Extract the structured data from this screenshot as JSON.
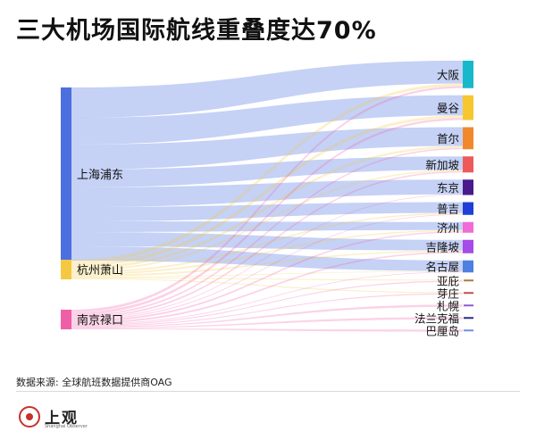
{
  "title": "三大机场国际航线重叠度达70%",
  "source": "数据来源: 全球航班数据提供商OAG",
  "logo": {
    "name": "上观",
    "sub": "Shanghai Observer"
  },
  "chart_data": {
    "type": "sankey",
    "title": "三大机场国际航线重叠度达70%",
    "sources": [
      {
        "name": "上海浦东",
        "color": "#4c6fe0"
      },
      {
        "name": "杭州萧山",
        "color": "#f5c842"
      },
      {
        "name": "南京禄口",
        "color": "#ef5fa8"
      }
    ],
    "targets": [
      {
        "name": "大阪",
        "color": "#16b8c9"
      },
      {
        "name": "曼谷",
        "color": "#f7c730"
      },
      {
        "name": "首尔",
        "color": "#f2882c"
      },
      {
        "name": "新加坡",
        "color": "#ee5a5a"
      },
      {
        "name": "东京",
        "color": "#4a1a8c"
      },
      {
        "name": "普吉",
        "color": "#1f3fd6"
      },
      {
        "name": "济州",
        "color": "#f06bd6"
      },
      {
        "name": "吉隆坡",
        "color": "#a64ae8"
      },
      {
        "name": "名古屋",
        "color": "#4f7fe0"
      },
      {
        "name": "亚庇",
        "color": "#b5763a"
      },
      {
        "name": "芽庄",
        "color": "#c44e4e"
      },
      {
        "name": "札幌",
        "color": "#8c5bd6"
      },
      {
        "name": "法兰克福",
        "color": "#2b2b8c"
      },
      {
        "name": "巴厘岛",
        "color": "#6f8fe0"
      }
    ],
    "links": [
      {
        "source": "上海浦东",
        "target": "大阪",
        "value": 17
      },
      {
        "source": "上海浦东",
        "target": "曼谷",
        "value": 15
      },
      {
        "source": "上海浦东",
        "target": "首尔",
        "value": 14
      },
      {
        "source": "上海浦东",
        "target": "新加坡",
        "value": 10
      },
      {
        "source": "上海浦东",
        "target": "东京",
        "value": 11
      },
      {
        "source": "上海浦东",
        "target": "普吉",
        "value": 8
      },
      {
        "source": "上海浦东",
        "target": "济州",
        "value": 6
      },
      {
        "source": "上海浦东",
        "target": "吉隆坡",
        "value": 8
      },
      {
        "source": "上海浦东",
        "target": "名古屋",
        "value": 8
      },
      {
        "source": "杭州萧山",
        "target": "大阪",
        "value": 2
      },
      {
        "source": "杭州萧山",
        "target": "曼谷",
        "value": 2
      },
      {
        "source": "杭州萧山",
        "target": "首尔",
        "value": 1.5
      },
      {
        "source": "杭州萧山",
        "target": "新加坡",
        "value": 1
      },
      {
        "source": "杭州萧山",
        "target": "普吉",
        "value": 1
      },
      {
        "source": "杭州萧山",
        "target": "济州",
        "value": 1
      },
      {
        "source": "杭州萧山",
        "target": "吉隆坡",
        "value": 1
      },
      {
        "source": "杭州萧山",
        "target": "名古屋",
        "value": 0.5
      },
      {
        "source": "杭州萧山",
        "target": "亚庇",
        "value": 0.5
      },
      {
        "source": "杭州萧山",
        "target": "芽庄",
        "value": 0.5
      },
      {
        "source": "南京禄口",
        "target": "大阪",
        "value": 1.5
      },
      {
        "source": "南京禄口",
        "target": "曼谷",
        "value": 1.5
      },
      {
        "source": "南京禄口",
        "target": "首尔",
        "value": 1
      },
      {
        "source": "南京禄口",
        "target": "新加坡",
        "value": 1
      },
      {
        "source": "南京禄口",
        "target": "东京",
        "value": 0.5
      },
      {
        "source": "南京禄口",
        "target": "普吉",
        "value": 0.5
      },
      {
        "source": "南京禄口",
        "target": "济州",
        "value": 1
      },
      {
        "source": "南京禄口",
        "target": "吉隆坡",
        "value": 1
      },
      {
        "source": "南京禄口",
        "target": "名古屋",
        "value": 0.5
      },
      {
        "source": "南京禄口",
        "target": "亚庇",
        "value": 0.5
      },
      {
        "source": "南京禄口",
        "target": "芽庄",
        "value": 0.5
      },
      {
        "source": "南京禄口",
        "target": "札幌",
        "value": 0.5
      },
      {
        "source": "南京禄口",
        "target": "法兰克福",
        "value": 0.5
      },
      {
        "source": "南京禄口",
        "target": "巴厘岛",
        "value": 0.5
      }
    ]
  }
}
